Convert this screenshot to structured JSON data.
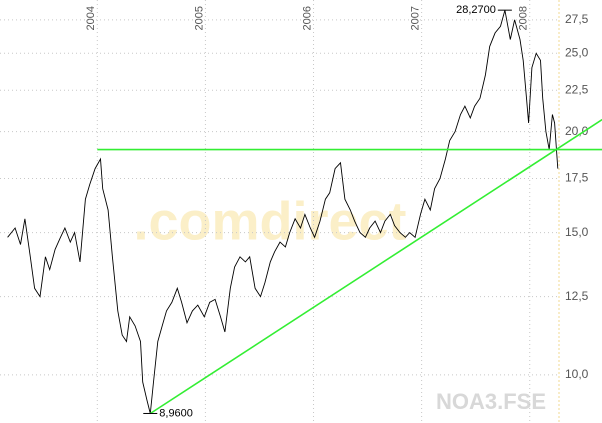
{
  "chart_data": {
    "type": "line",
    "watermark": ".comdirect",
    "symbol": "NOA3.FSE",
    "log_scale": true,
    "grid": true,
    "xlim": [
      2003.1,
      2008.28
    ],
    "xticks": [
      2004,
      2005,
      2006,
      2007,
      2008
    ],
    "ylim": [
      8.72,
      29.1
    ],
    "yticks": [
      {
        "value": 10,
        "label": "10,0"
      },
      {
        "value": 12.5,
        "label": "12,5"
      },
      {
        "value": 15,
        "label": "15,0"
      },
      {
        "value": 17.5,
        "label": "17,5"
      },
      {
        "value": 20,
        "label": "20,0"
      },
      {
        "value": 22.5,
        "label": "22,5"
      },
      {
        "value": 25,
        "label": "25,0"
      },
      {
        "value": 27.5,
        "label": "27,5"
      }
    ],
    "x": [
      2003.17,
      2003.24,
      2003.29,
      2003.33,
      2003.38,
      2003.42,
      2003.47,
      2003.52,
      2003.56,
      2003.61,
      2003.66,
      2003.7,
      2003.75,
      2003.79,
      2003.84,
      2003.89,
      2003.93,
      2003.98,
      2004.03,
      2004.05,
      2004.1,
      2004.14,
      2004.19,
      2004.23,
      2004.27,
      2004.3,
      2004.35,
      2004.4,
      2004.42,
      2004.46,
      2004.49,
      2004.52,
      2004.56,
      2004.6,
      2004.64,
      2004.69,
      2004.74,
      2004.78,
      2004.83,
      2004.88,
      2004.93,
      2004.99,
      2005.04,
      2005.09,
      2005.14,
      2005.18,
      2005.23,
      2005.27,
      2005.32,
      2005.37,
      2005.41,
      2005.46,
      2005.51,
      2005.55,
      2005.6,
      2005.64,
      2005.69,
      2005.74,
      2005.78,
      2005.83,
      2005.88,
      2005.92,
      2005.97,
      2006.01,
      2006.06,
      2006.11,
      2006.15,
      2006.2,
      2006.25,
      2006.29,
      2006.34,
      2006.38,
      2006.43,
      2006.48,
      2006.52,
      2006.57,
      2006.62,
      2006.66,
      2006.71,
      2006.75,
      2006.8,
      2006.85,
      2006.89,
      2006.94,
      2006.99,
      2007.03,
      2007.08,
      2007.12,
      2007.17,
      2007.22,
      2007.26,
      2007.31,
      2007.36,
      2007.4,
      2007.45,
      2007.49,
      2007.54,
      2007.59,
      2007.63,
      2007.68,
      2007.73,
      2007.77,
      2007.82,
      2007.86,
      2007.91,
      2007.94,
      2007.97,
      2007.99,
      2008.02,
      2008.06,
      2008.1,
      2008.12,
      2008.15,
      2008.18,
      2008.21,
      2008.23,
      2008.26
    ],
    "series": [
      {
        "color": "#000000",
        "values": [
          14.8,
          15.2,
          14.5,
          15.6,
          14.0,
          12.8,
          12.5,
          14.0,
          13.5,
          14.3,
          14.8,
          15.2,
          14.6,
          15.0,
          13.8,
          16.5,
          17.2,
          18.0,
          18.5,
          17.0,
          16.0,
          14.0,
          12.0,
          11.2,
          11.0,
          11.8,
          11.5,
          11.0,
          9.8,
          9.3,
          8.96,
          9.8,
          11.0,
          11.5,
          12.0,
          12.3,
          12.8,
          12.3,
          11.6,
          12.0,
          12.2,
          11.8,
          12.3,
          12.4,
          11.8,
          11.3,
          12.8,
          13.6,
          14.0,
          13.8,
          14.0,
          12.8,
          12.5,
          13.0,
          13.8,
          14.2,
          14.6,
          14.4,
          15.0,
          15.6,
          15.2,
          15.8,
          15.2,
          14.8,
          15.5,
          16.5,
          16.8,
          18.0,
          18.3,
          16.5,
          16.0,
          15.5,
          15.0,
          14.8,
          15.2,
          15.5,
          15.0,
          15.5,
          15.8,
          15.3,
          15.0,
          14.8,
          15.0,
          14.8,
          15.8,
          16.5,
          16.0,
          17.0,
          17.5,
          18.5,
          19.5,
          20.0,
          21.0,
          21.5,
          20.8,
          21.5,
          22.0,
          23.5,
          25.5,
          26.5,
          27.0,
          28.27,
          26.0,
          27.5,
          26.0,
          24.5,
          22.0,
          20.5,
          24.0,
          25.0,
          24.5,
          22.0,
          20.0,
          19.0,
          21.0,
          20.5,
          18.0
        ]
      }
    ],
    "trendlines": [
      {
        "color": "#33ee33",
        "x": [
          2004.0,
          2008.67
        ],
        "values": [
          19.0,
          19.0
        ]
      },
      {
        "color": "#33ee33",
        "x": [
          2004.49,
          2008.67
        ],
        "values": [
          8.96,
          20.7
        ]
      }
    ],
    "annotations": [
      {
        "text": "28,2700",
        "x": 2007.77,
        "y": 28.27,
        "side": "left"
      },
      {
        "text": "8,9600",
        "x": 2004.49,
        "y": 8.96,
        "side": "right"
      }
    ]
  }
}
